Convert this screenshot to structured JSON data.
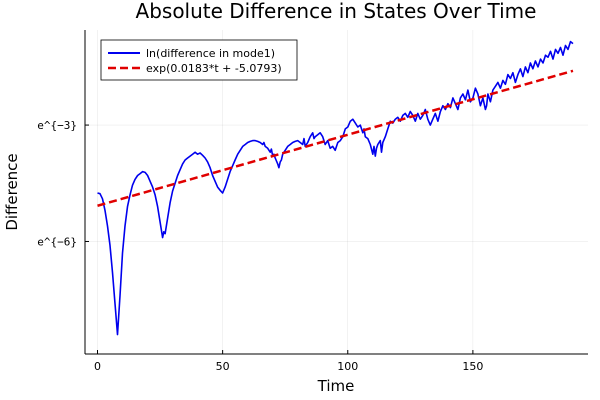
{
  "chart_data": {
    "type": "line",
    "title": "Absolute Difference in States Over Time",
    "xlabel": "Time",
    "ylabel": "Difference",
    "xlim": [
      -5,
      196
    ],
    "ylim": [
      -8.9,
      -0.55
    ],
    "xticks": [
      0,
      50,
      100,
      150
    ],
    "xtick_labels": [
      "0",
      "50",
      "100",
      "150"
    ],
    "yticks": [
      -6,
      -3
    ],
    "ytick_labels": [
      "e^{−6}",
      "e^{−3}"
    ],
    "grid": true,
    "legend_position": "top-left",
    "series": [
      {
        "name": "ln(difference in mode1)",
        "style": "solid",
        "color": "#0000ee",
        "points": [
          [
            0,
            -4.75
          ],
          [
            1,
            -4.77
          ],
          [
            2,
            -4.9
          ],
          [
            3,
            -5.2
          ],
          [
            4,
            -5.6
          ],
          [
            5,
            -6.1
          ],
          [
            6,
            -6.8
          ],
          [
            7,
            -7.6
          ],
          [
            8,
            -8.4
          ],
          [
            9,
            -7.4
          ],
          [
            10,
            -6.3
          ],
          [
            11,
            -5.6
          ],
          [
            12,
            -5.1
          ],
          [
            13,
            -4.8
          ],
          [
            14,
            -4.55
          ],
          [
            15,
            -4.4
          ],
          [
            16,
            -4.3
          ],
          [
            17,
            -4.25
          ],
          [
            18,
            -4.2
          ],
          [
            19,
            -4.22
          ],
          [
            20,
            -4.3
          ],
          [
            21,
            -4.45
          ],
          [
            22,
            -4.6
          ],
          [
            23,
            -4.8
          ],
          [
            24,
            -5.1
          ],
          [
            25,
            -5.5
          ],
          [
            26,
            -5.9
          ],
          [
            26.5,
            -5.75
          ],
          [
            27,
            -5.8
          ],
          [
            28,
            -5.4
          ],
          [
            29,
            -5.0
          ],
          [
            30,
            -4.7
          ],
          [
            31,
            -4.5
          ],
          [
            32,
            -4.3
          ],
          [
            33,
            -4.15
          ],
          [
            34,
            -4.0
          ],
          [
            35,
            -3.9
          ],
          [
            36,
            -3.85
          ],
          [
            37,
            -3.8
          ],
          [
            38,
            -3.75
          ],
          [
            39,
            -3.7
          ],
          [
            40,
            -3.75
          ],
          [
            41,
            -3.72
          ],
          [
            42,
            -3.78
          ],
          [
            43,
            -3.85
          ],
          [
            44,
            -3.95
          ],
          [
            45,
            -4.1
          ],
          [
            46,
            -4.3
          ],
          [
            47,
            -4.45
          ],
          [
            48,
            -4.6
          ],
          [
            49,
            -4.68
          ],
          [
            50,
            -4.75
          ],
          [
            51,
            -4.6
          ],
          [
            52,
            -4.4
          ],
          [
            53,
            -4.2
          ],
          [
            54,
            -4.05
          ],
          [
            55,
            -3.9
          ],
          [
            56,
            -3.75
          ],
          [
            57,
            -3.65
          ],
          [
            58,
            -3.55
          ],
          [
            59,
            -3.5
          ],
          [
            60,
            -3.45
          ],
          [
            61,
            -3.42
          ],
          [
            62,
            -3.4
          ],
          [
            63,
            -3.4
          ],
          [
            64,
            -3.42
          ],
          [
            65,
            -3.45
          ],
          [
            66,
            -3.5
          ],
          [
            66.5,
            -3.45
          ],
          [
            67,
            -3.55
          ],
          [
            68,
            -3.6
          ],
          [
            69,
            -3.7
          ],
          [
            69.5,
            -3.62
          ],
          [
            70,
            -3.8
          ],
          [
            70.5,
            -3.75
          ],
          [
            71,
            -3.85
          ],
          [
            72,
            -4.0
          ],
          [
            72.5,
            -4.1
          ],
          [
            73,
            -3.95
          ],
          [
            73.5,
            -3.9
          ],
          [
            74,
            -3.75
          ],
          [
            75,
            -3.65
          ],
          [
            76,
            -3.55
          ],
          [
            77,
            -3.5
          ],
          [
            78,
            -3.45
          ],
          [
            79,
            -3.42
          ],
          [
            80,
            -3.4
          ],
          [
            81,
            -3.45
          ],
          [
            82,
            -3.5
          ],
          [
            82.5,
            -3.35
          ],
          [
            83,
            -3.55
          ],
          [
            84,
            -3.45
          ],
          [
            85,
            -3.3
          ],
          [
            86,
            -3.2
          ],
          [
            86.5,
            -3.35
          ],
          [
            87,
            -3.3
          ],
          [
            88,
            -3.25
          ],
          [
            89,
            -3.2
          ],
          [
            90,
            -3.3
          ],
          [
            91,
            -3.5
          ],
          [
            92,
            -3.4
          ],
          [
            93,
            -3.6
          ],
          [
            94,
            -3.55
          ],
          [
            95,
            -3.65
          ],
          [
            96,
            -3.45
          ],
          [
            97,
            -3.4
          ],
          [
            98,
            -3.3
          ],
          [
            99,
            -3.1
          ],
          [
            100,
            -3.05
          ],
          [
            101,
            -2.9
          ],
          [
            102,
            -2.85
          ],
          [
            103,
            -2.95
          ],
          [
            104,
            -3.05
          ],
          [
            105,
            -3.0
          ],
          [
            106,
            -3.2
          ],
          [
            106.5,
            -3.1
          ],
          [
            107,
            -3.3
          ],
          [
            108,
            -3.35
          ],
          [
            109,
            -3.5
          ],
          [
            110,
            -3.75
          ],
          [
            110.5,
            -3.55
          ],
          [
            111,
            -3.8
          ],
          [
            111.5,
            -3.6
          ],
          [
            112,
            -3.5
          ],
          [
            113,
            -3.4
          ],
          [
            113.5,
            -3.7
          ],
          [
            114,
            -3.45
          ],
          [
            115,
            -3.3
          ],
          [
            116,
            -3.1
          ],
          [
            117,
            -2.9
          ],
          [
            118,
            -2.95
          ],
          [
            119,
            -2.85
          ],
          [
            120,
            -2.8
          ],
          [
            121,
            -2.9
          ],
          [
            122,
            -2.75
          ],
          [
            123,
            -2.7
          ],
          [
            124,
            -2.8
          ],
          [
            125,
            -2.65
          ],
          [
            126,
            -2.75
          ],
          [
            127,
            -2.9
          ],
          [
            128,
            -2.7
          ],
          [
            129,
            -2.85
          ],
          [
            130,
            -2.75
          ],
          [
            131,
            -2.6
          ],
          [
            132,
            -2.85
          ],
          [
            133,
            -3.0
          ],
          [
            134,
            -2.85
          ],
          [
            135,
            -2.7
          ],
          [
            136,
            -2.9
          ],
          [
            137,
            -2.65
          ],
          [
            138,
            -2.5
          ],
          [
            139,
            -2.6
          ],
          [
            140,
            -2.45
          ],
          [
            141,
            -2.55
          ],
          [
            142,
            -2.3
          ],
          [
            143,
            -2.45
          ],
          [
            144,
            -2.6
          ],
          [
            145,
            -2.3
          ],
          [
            146,
            -2.2
          ],
          [
            147,
            -2.35
          ],
          [
            148,
            -2.1
          ],
          [
            149,
            -2.4
          ],
          [
            150,
            -2.3
          ],
          [
            151,
            -2.05
          ],
          [
            152,
            -2.2
          ],
          [
            153,
            -2.5
          ],
          [
            154,
            -2.3
          ],
          [
            155,
            -2.6
          ],
          [
            155.5,
            -2.5
          ],
          [
            156,
            -2.2
          ],
          [
            157,
            -2.4
          ],
          [
            158,
            -2.1
          ],
          [
            159,
            -2.0
          ],
          [
            160,
            -1.9
          ],
          [
            161,
            -2.05
          ],
          [
            162,
            -1.85
          ],
          [
            163,
            -1.95
          ],
          [
            164,
            -1.7
          ],
          [
            165,
            -1.8
          ],
          [
            166,
            -1.65
          ],
          [
            167,
            -1.9
          ],
          [
            168,
            -1.7
          ],
          [
            169,
            -1.55
          ],
          [
            170,
            -1.75
          ],
          [
            171,
            -1.5
          ],
          [
            172,
            -1.65
          ],
          [
            173,
            -1.4
          ],
          [
            174,
            -1.55
          ],
          [
            175,
            -1.35
          ],
          [
            176,
            -1.5
          ],
          [
            177,
            -1.3
          ],
          [
            178,
            -1.4
          ],
          [
            179,
            -1.2
          ],
          [
            180,
            -1.25
          ],
          [
            181,
            -1.1
          ],
          [
            182,
            -1.3
          ],
          [
            183,
            -1.05
          ],
          [
            184,
            -1.15
          ],
          [
            185,
            -1.0
          ],
          [
            186,
            -1.2
          ],
          [
            187,
            -0.95
          ],
          [
            188,
            -1.05
          ],
          [
            189,
            -0.85
          ],
          [
            190,
            -0.9
          ]
        ]
      },
      {
        "name": "exp(0.0183*t + -5.0793)",
        "style": "dashed",
        "color": "#e00000",
        "slope": 0.0183,
        "intercept": -5.0793,
        "x_range": [
          0,
          190
        ]
      }
    ]
  }
}
